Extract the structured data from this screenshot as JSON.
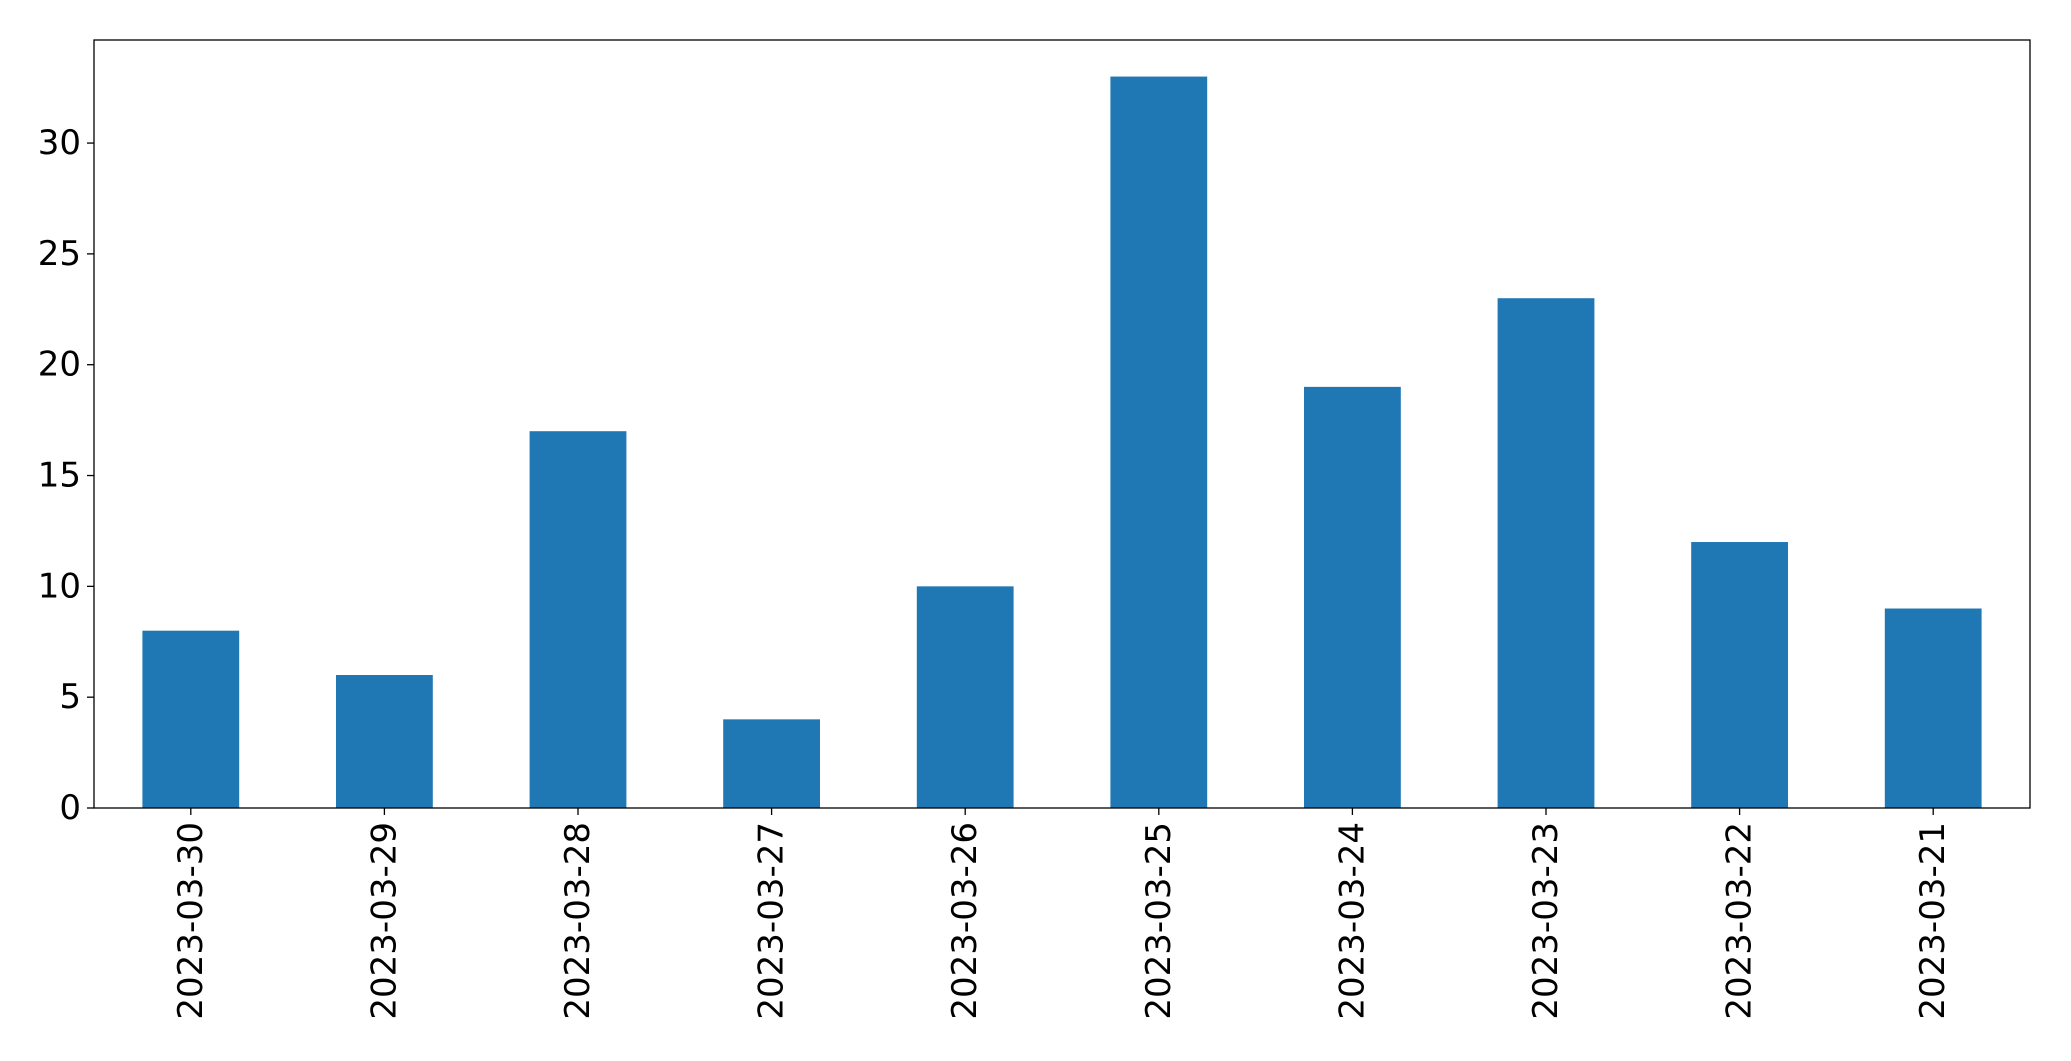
{
  "chart_data": {
    "type": "bar",
    "categories": [
      "2023-03-30",
      "2023-03-29",
      "2023-03-28",
      "2023-03-27",
      "2023-03-26",
      "2023-03-25",
      "2023-03-24",
      "2023-03-23",
      "2023-03-22",
      "2023-03-21"
    ],
    "values": [
      8,
      6,
      17,
      4,
      10,
      33,
      19,
      23,
      12,
      9
    ],
    "color": "#1f77b4",
    "ylim": [
      0,
      34.65
    ],
    "yticks": [
      0,
      5,
      10,
      15,
      20,
      25,
      30
    ],
    "grid": false
  }
}
